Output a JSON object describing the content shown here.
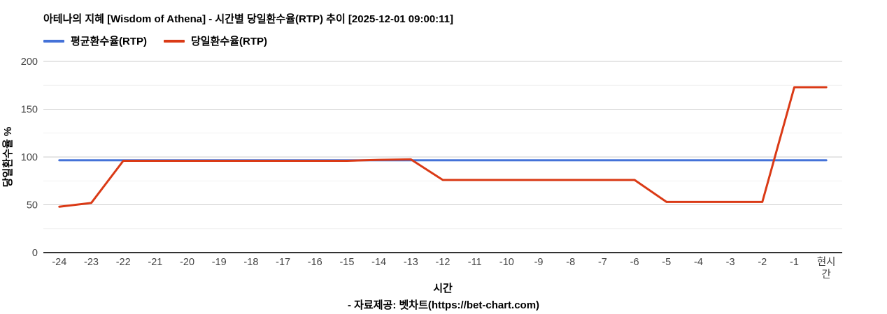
{
  "header": {
    "title": "아테나의 지혜 [Wisdom of Athena] - 시간별 당일환수율(RTP) 추이 [2025-12-01 09:00:11]"
  },
  "legend": {
    "items": [
      {
        "label": "평균환수율(RTP)",
        "color": "#4472D8"
      },
      {
        "label": "당일환수율(RTP)",
        "color": "#DA3A16"
      }
    ]
  },
  "chart_data": {
    "type": "line",
    "title": "아테나의 지혜 [Wisdom of Athena] - 시간별 당일환수율(RTP) 추이 [2025-12-01 09:00:11]",
    "categories": [
      "-24",
      "-23",
      "-22",
      "-21",
      "-20",
      "-19",
      "-18",
      "-17",
      "-16",
      "-15",
      "-14",
      "-13",
      "-12",
      "-11",
      "-10",
      "-9",
      "-8",
      "-7",
      "-6",
      "-5",
      "-4",
      "-3",
      "-2",
      "-1",
      "현시간"
    ],
    "series": [
      {
        "name": "평균환수율(RTP)",
        "color": "#4472D8",
        "values": [
          96.5,
          96.5,
          96.5,
          96.5,
          96.5,
          96.5,
          96.5,
          96.5,
          96.5,
          96.5,
          96.5,
          96.5,
          96.5,
          96.5,
          96.5,
          96.5,
          96.5,
          96.5,
          96.5,
          96.5,
          96.5,
          96.5,
          96.5,
          96.5,
          96.5
        ]
      },
      {
        "name": "당일환수율(RTP)",
        "color": "#DA3A16",
        "values": [
          48,
          52,
          96,
          96,
          96,
          96,
          96,
          96,
          96,
          96,
          97,
          97.5,
          76,
          76,
          76,
          76,
          76,
          76,
          76,
          53,
          53,
          53,
          53,
          173,
          173
        ]
      }
    ],
    "xlabel": "시간",
    "ylabel": "당일환수율 %",
    "ylim": [
      0,
      200
    ],
    "yticks": [
      0,
      50,
      100,
      150,
      200
    ],
    "minor_yticks": [
      25,
      75,
      125,
      175
    ],
    "legend_position": "top",
    "grid": true,
    "colors": {
      "major_gridline": "#CCCCCC",
      "minor_gridline": "#F1F1F1",
      "baseline": "#333333",
      "tick_label": "#444444"
    }
  },
  "footer": {
    "credit": "- 자료제공: 벳차트(https://bet-chart.com)"
  }
}
